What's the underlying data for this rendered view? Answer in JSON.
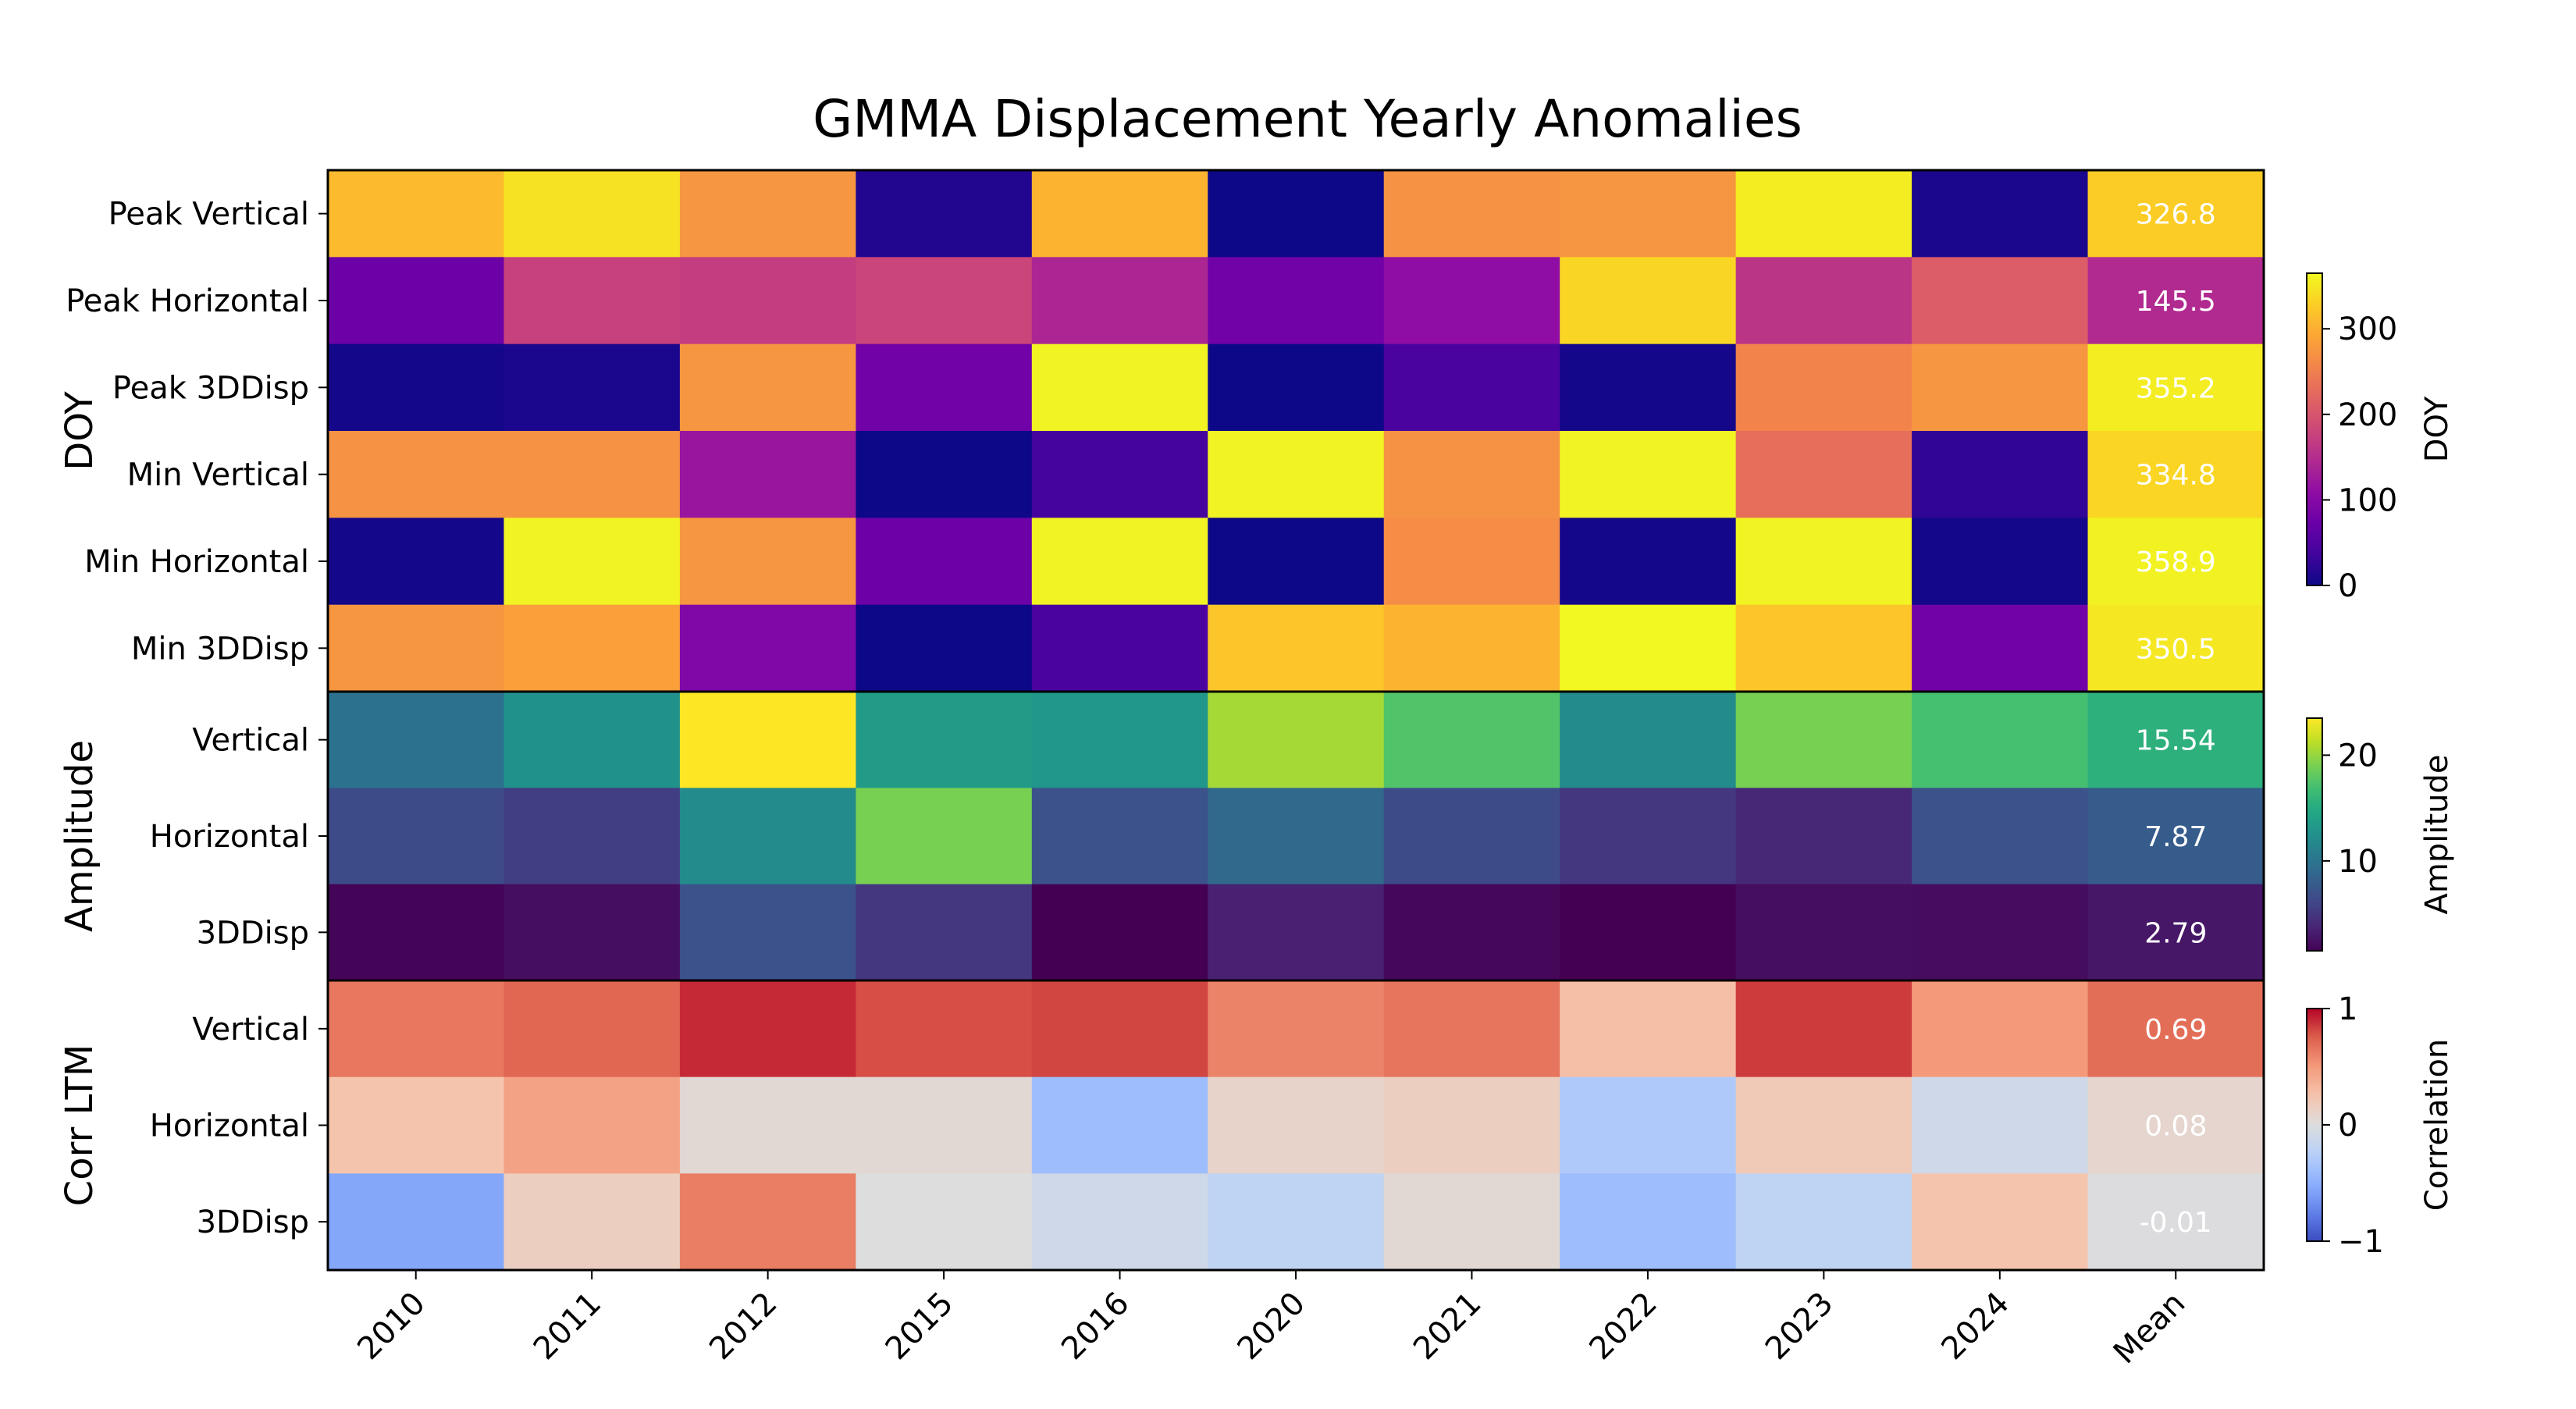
{
  "chart_data": {
    "type": "heatmap",
    "title": "GMMA Displacement Yearly Anomalies",
    "columns": [
      "2010",
      "2011",
      "2012",
      "2015",
      "2016",
      "2020",
      "2021",
      "2022",
      "2023",
      "2024",
      "Mean"
    ],
    "panels": [
      {
        "ylabel": "DOY",
        "colormap": "plasma",
        "colorbar": {
          "label": "DOY",
          "range": [
            0,
            365
          ],
          "ticks": [
            "0",
            "100",
            "200",
            "300"
          ],
          "tick_values": [
            0,
            100,
            200,
            300
          ]
        },
        "rows": [
          {
            "label": "Peak Vertical",
            "values": [
              310,
              345,
              275,
              15,
              305,
              0,
              270,
              275,
              355,
              10,
              326.8
            ],
            "mean_label": "326.8"
          },
          {
            "label": "Peak Horizontal",
            "values": [
              75,
              175,
              170,
              180,
              140,
              80,
              110,
              335,
              160,
              210,
              145.5
            ],
            "mean_label": "145.5"
          },
          {
            "label": "Peak 3DDisp",
            "values": [
              5,
              10,
              275,
              80,
              360,
              0,
              45,
              5,
              255,
              275,
              355.2
            ],
            "mean_label": "355.2"
          },
          {
            "label": "Min Vertical",
            "values": [
              270,
              270,
              120,
              0,
              40,
              360,
              270,
              360,
              230,
              25,
              334.8
            ],
            "mean_label": "334.8"
          },
          {
            "label": "Min Horizontal",
            "values": [
              5,
              360,
              275,
              75,
              360,
              0,
              265,
              5,
              360,
              5,
              358.9
            ],
            "mean_label": "358.9"
          },
          {
            "label": "Min 3DDisp",
            "values": [
              275,
              285,
              95,
              0,
              45,
              320,
              305,
              365,
              320,
              80,
              350.5
            ],
            "mean_label": "350.5"
          }
        ]
      },
      {
        "ylabel": "Amplitude",
        "colormap": "viridis",
        "colorbar": {
          "label": "Amplitude",
          "range": [
            1.5,
            23.5
          ],
          "ticks": [
            "10",
            "20"
          ],
          "tick_values": [
            10,
            20
          ]
        },
        "rows": [
          {
            "label": "Vertical",
            "values": [
              9.8,
              12.5,
              23.5,
              13.5,
              13.0,
              20.5,
              17.5,
              12.0,
              19.0,
              17.0,
              15.54
            ],
            "mean_label": "15.54"
          },
          {
            "label": "Horizontal",
            "values": [
              6.5,
              5.5,
              12.0,
              19.0,
              7.0,
              9.0,
              6.5,
              5.0,
              4.0,
              7.0,
              7.87
            ],
            "mean_label": "7.87"
          },
          {
            "label": "3DDisp",
            "values": [
              1.7,
              2.3,
              7.0,
              5.0,
              1.4,
              3.5,
              1.9,
              1.5,
              2.3,
              2.2,
              2.79
            ],
            "mean_label": "2.79"
          }
        ]
      },
      {
        "ylabel": "Corr LTM",
        "colormap": "coolwarm",
        "colorbar": {
          "label": "Correlation",
          "range": [
            -1,
            1
          ],
          "ticks": [
            "−1",
            "0",
            "1"
          ],
          "tick_values": [
            -1,
            0,
            1
          ]
        },
        "rows": [
          {
            "label": "Vertical",
            "values": [
              0.65,
              0.72,
              0.9,
              0.8,
              0.82,
              0.6,
              0.66,
              0.28,
              0.85,
              0.5,
              0.69
            ],
            "mean_label": "0.69"
          },
          {
            "label": "Horizontal",
            "values": [
              0.25,
              0.45,
              0.05,
              0.05,
              -0.4,
              0.1,
              0.15,
              -0.3,
              0.2,
              -0.1,
              0.08
            ],
            "mean_label": "0.08"
          },
          {
            "label": "3DDisp",
            "values": [
              -0.55,
              0.15,
              0.62,
              0.0,
              -0.1,
              -0.2,
              0.05,
              -0.4,
              -0.2,
              0.25,
              -0.01
            ],
            "mean_label": "-0.01"
          }
        ]
      }
    ]
  }
}
